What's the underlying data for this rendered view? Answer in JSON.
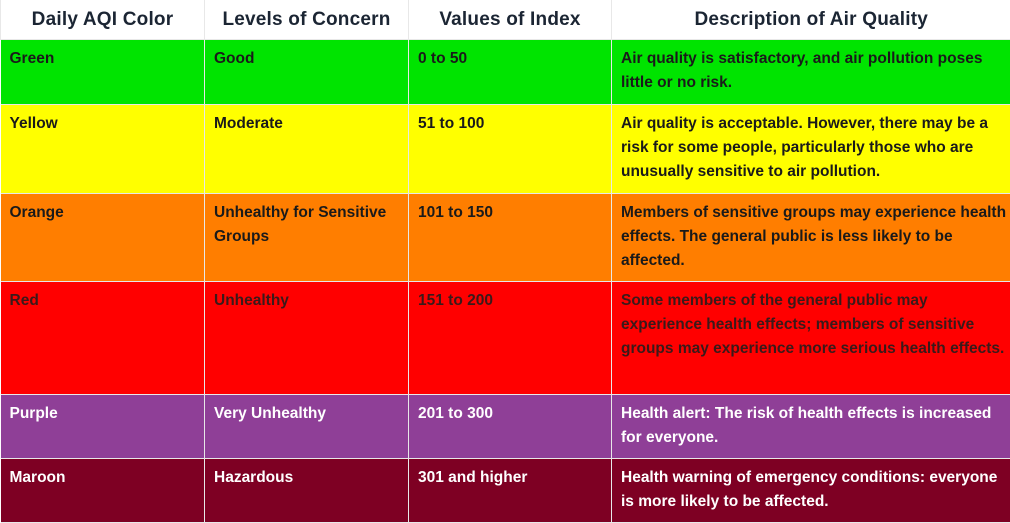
{
  "header": {
    "color": "Daily AQI Color",
    "concern": "Levels of Concern",
    "values": "Values of Index",
    "description": "Description of Air Quality"
  },
  "rows": [
    {
      "color": "Green",
      "concern": "Good",
      "values": "0 to 50",
      "description": "Air quality is satisfactory, and air pollution poses little or no risk.",
      "bg": "#00e400",
      "text_color": "#1a1a1a"
    },
    {
      "color": "Yellow",
      "concern": "Moderate",
      "values": "51 to 100",
      "description": "Air quality is acceptable. However, there may be a risk for some people, particularly those who are unusually sensitive to air pollution.",
      "bg": "#ffff00",
      "text_color": "#1a1a1a"
    },
    {
      "color": "Orange",
      "concern": "Unhealthy for Sensitive Groups",
      "values": "101 to 150",
      "description": "Members of sensitive groups may experience health effects. The general public is less likely to be affected.",
      "bg": "#ff7e00",
      "text_color": "#1a1a1a"
    },
    {
      "color": "Red",
      "concern": "Unhealthy",
      "values": "151 to 200",
      "description": "Some members of the general public may experience health effects; members of sensitive groups may experience more serious health effects.",
      "bg": "#ff0000",
      "text_color": "#3a1a1a"
    },
    {
      "color": "Purple",
      "concern": "Very Unhealthy",
      "values": "201 to 300",
      "description": "Health alert: The risk of health effects is increased for everyone.",
      "bg": "#8f3f97",
      "text_color": "#ffffff"
    },
    {
      "color": "Maroon",
      "concern": "Hazardous",
      "values": "301 and higher",
      "description": "Health warning of emergency conditions: everyone is more likely to be affected.",
      "bg": "#7e0023",
      "text_color": "#ffffff"
    }
  ]
}
